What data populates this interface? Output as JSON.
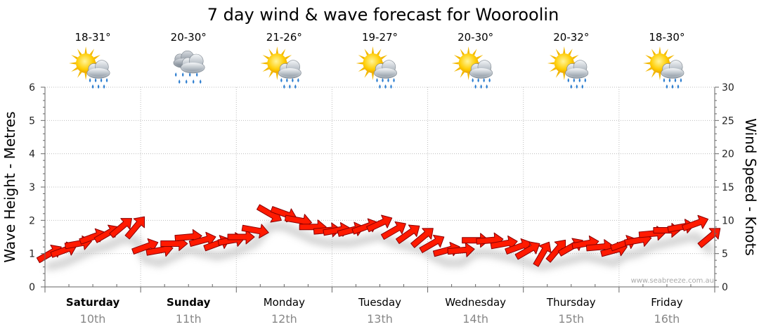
{
  "chart_data": {
    "type": "line",
    "title": "7 day wind & wave forecast for Wooroolin",
    "ylabel_left": "Wave Height - Metres",
    "ylabel_right": "Wind Speed - Knots",
    "ylim_left": [
      0,
      6
    ],
    "ylim_right": [
      0,
      30
    ],
    "left_ticks": [
      "0",
      "1",
      "2",
      "3",
      "4",
      "5",
      "6"
    ],
    "right_ticks": [
      "0",
      "5",
      "10",
      "15",
      "20",
      "25",
      "30"
    ],
    "grid": true,
    "watermark": "www.seabreeze.com.au",
    "days": [
      {
        "day": "Saturday",
        "date": "10th",
        "bold": true,
        "temp": "18-31°",
        "icon": "sun-cloud-rain-icon"
      },
      {
        "day": "Sunday",
        "date": "11th",
        "bold": true,
        "temp": "20-30°",
        "icon": "cloud-rain-icon"
      },
      {
        "day": "Monday",
        "date": "12th",
        "bold": false,
        "temp": "21-26°",
        "icon": "sun-cloud-rain-icon"
      },
      {
        "day": "Tuesday",
        "date": "13th",
        "bold": false,
        "temp": "19-27°",
        "icon": "sun-cloud-rain-icon"
      },
      {
        "day": "Wednesday",
        "date": "14th",
        "bold": false,
        "temp": "20-30°",
        "icon": "sun-cloud-rain-icon"
      },
      {
        "day": "Thursday",
        "date": "15th",
        "bold": false,
        "temp": "20-32°",
        "icon": "sun-cloud-rain-icon"
      },
      {
        "day": "Friday",
        "date": "16th",
        "bold": false,
        "temp": "18-30°",
        "icon": "sun-cloud-rain-icon"
      }
    ],
    "series": [
      {
        "name": "Wind Speed",
        "unit": "knots",
        "color": "#ff1a00",
        "t_days": [
          0.0,
          0.15,
          0.3,
          0.45,
          0.6,
          0.75,
          0.9,
          1.0,
          1.15,
          1.3,
          1.45,
          1.6,
          1.75,
          1.9,
          2.0,
          2.15,
          2.3,
          2.45,
          2.6,
          2.75,
          2.9,
          3.0,
          3.15,
          3.3,
          3.45,
          3.6,
          3.75,
          3.9,
          4.0,
          4.15,
          4.3,
          4.45,
          4.6,
          4.75,
          4.9,
          5.0,
          5.15,
          5.3,
          5.45,
          5.6,
          5.75,
          5.9,
          6.0,
          6.15,
          6.3,
          6.45,
          6.6,
          6.75,
          6.9
        ],
        "knots": [
          5.0,
          5.5,
          6.5,
          7.5,
          8.0,
          9.0,
          9.0,
          6.0,
          5.5,
          6.5,
          7.5,
          7.0,
          6.5,
          7.0,
          7.5,
          8.5,
          11.0,
          11.0,
          10.0,
          9.0,
          8.5,
          8.5,
          8.5,
          9.0,
          9.5,
          8.5,
          8.0,
          7.5,
          6.5,
          5.5,
          5.5,
          7.0,
          7.0,
          6.5,
          6.0,
          5.5,
          5.0,
          5.5,
          6.0,
          6.5,
          6.0,
          5.5,
          6.5,
          7.0,
          8.0,
          8.5,
          9.0,
          9.5,
          7.5
        ],
        "dir_deg": [
          150,
          160,
          170,
          160,
          150,
          140,
          130,
          160,
          170,
          180,
          175,
          165,
          160,
          170,
          180,
          190,
          210,
          200,
          190,
          180,
          175,
          170,
          165,
          160,
          155,
          150,
          145,
          140,
          150,
          165,
          175,
          180,
          175,
          170,
          160,
          150,
          120,
          130,
          150,
          170,
          175,
          165,
          160,
          170,
          175,
          180,
          170,
          160,
          140
        ]
      }
    ]
  }
}
